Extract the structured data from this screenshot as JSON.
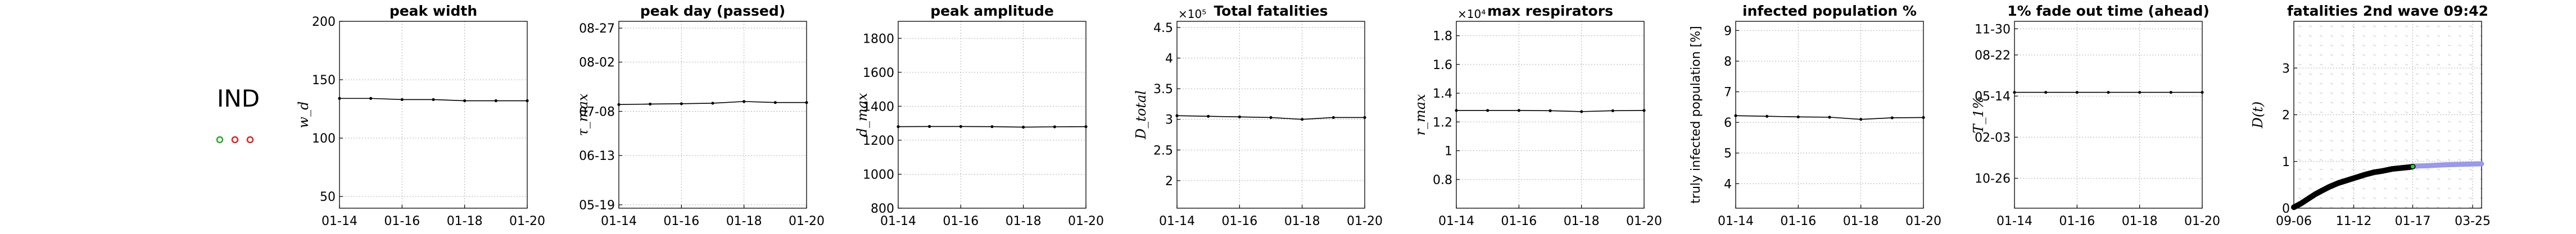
{
  "country": {
    "code": "IND",
    "markers": [
      "#22aa22",
      "#dd2222",
      "#dd2222"
    ]
  },
  "colors": {
    "line": "#000000",
    "grid": "#b0b0b0",
    "wave2": "#9999ee",
    "field": "#c8c8c8"
  },
  "chart_data": [
    {
      "type": "line",
      "title": "peak width",
      "ylabel": "w_d",
      "ylim": [
        40,
        200
      ],
      "yticks": [
        50,
        100,
        150,
        200
      ],
      "ytick_labels": [
        "50",
        "100",
        "150",
        "200"
      ],
      "xticks": [
        "01-14",
        "01-16",
        "01-18",
        "01-20"
      ],
      "x": [
        "01-14",
        "01-15",
        "01-16",
        "01-17",
        "01-18",
        "01-19",
        "01-20"
      ],
      "values": [
        134,
        134,
        133,
        133,
        132,
        132,
        132
      ]
    },
    {
      "type": "line",
      "title": "peak day (passed)",
      "ylabel": "τ_max",
      "ylim": [
        0,
        110
      ],
      "yticks": [
        2,
        31,
        57,
        86,
        106
      ],
      "ytick_labels": [
        "05-19",
        "06-13",
        "07-08",
        "08-02",
        "08-27"
      ],
      "xticks": [
        "01-14",
        "01-16",
        "01-18",
        "01-20"
      ],
      "x": [
        "01-14",
        "01-15",
        "01-16",
        "01-17",
        "01-18",
        "01-19",
        "01-20"
      ],
      "values": [
        61,
        61.3,
        61.5,
        61.8,
        62.8,
        62.2,
        62.2
      ]
    },
    {
      "type": "line",
      "title": "peak amplitude",
      "ylabel": "d_max",
      "ylim": [
        800,
        1900
      ],
      "yticks": [
        800,
        1000,
        1200,
        1400,
        1600,
        1800
      ],
      "ytick_labels": [
        "800",
        "1000",
        "1200",
        "1400",
        "1600",
        "1800"
      ],
      "xticks": [
        "01-14",
        "01-16",
        "01-18",
        "01-20"
      ],
      "x": [
        "01-14",
        "01-15",
        "01-16",
        "01-17",
        "01-18",
        "01-19",
        "01-20"
      ],
      "values": [
        1280,
        1281,
        1281,
        1280,
        1277,
        1279,
        1280
      ]
    },
    {
      "type": "line",
      "title": "Total fatalities",
      "ylabel": "D_total",
      "multiplier": "×10⁵",
      "ylim": [
        1.55,
        4.6
      ],
      "yticks": [
        2.0,
        2.5,
        3.0,
        3.5,
        4.0,
        4.5
      ],
      "ytick_labels": [
        "2",
        "2.5",
        "3",
        "3.5",
        "4",
        "4.5"
      ],
      "xticks": [
        "01-14",
        "01-16",
        "01-18",
        "01-20"
      ],
      "x": [
        "01-14",
        "01-15",
        "01-16",
        "01-17",
        "01-18",
        "01-19",
        "01-20"
      ],
      "values": [
        3.06,
        3.05,
        3.04,
        3.03,
        3.0,
        3.03,
        3.03
      ]
    },
    {
      "type": "line",
      "title": "max respirators",
      "ylabel": "r_max",
      "multiplier": "×10⁴",
      "ylim": [
        0.6,
        1.9
      ],
      "yticks": [
        0.8,
        1.0,
        1.2,
        1.4,
        1.6,
        1.8
      ],
      "ytick_labels": [
        "0.8",
        "1",
        "1.2",
        "1.4",
        "1.6",
        "1.8"
      ],
      "xticks": [
        "01-14",
        "01-16",
        "01-18",
        "01-20"
      ],
      "x": [
        "01-14",
        "01-15",
        "01-16",
        "01-17",
        "01-18",
        "01-19",
        "01-20"
      ],
      "values": [
        1.28,
        1.28,
        1.28,
        1.278,
        1.272,
        1.278,
        1.28
      ]
    },
    {
      "type": "line",
      "title": "infected population %",
      "ylabel": "truly infected population [%]",
      "ylim": [
        3.2,
        9.3
      ],
      "yticks": [
        4,
        5,
        6,
        7,
        8,
        9
      ],
      "ytick_labels": [
        "4",
        "5",
        "6",
        "7",
        "8",
        "9"
      ],
      "xticks": [
        "01-14",
        "01-16",
        "01-18",
        "01-20"
      ],
      "x": [
        "01-14",
        "01-15",
        "01-16",
        "01-17",
        "01-18",
        "01-19",
        "01-20"
      ],
      "values": [
        6.22,
        6.2,
        6.18,
        6.17,
        6.1,
        6.15,
        6.16
      ]
    },
    {
      "type": "line",
      "title": "1% fade out time (ahead)",
      "ylabel": "T_1%",
      "ylim": [
        0,
        100
      ],
      "yticks": [
        16,
        38,
        60,
        82,
        96
      ],
      "ytick_labels": [
        "10-26",
        "02-03",
        "05-14",
        "08-22",
        "11-30"
      ],
      "xticks": [
        "01-14",
        "01-16",
        "01-18",
        "01-20"
      ],
      "x": [
        "01-14",
        "01-15",
        "01-16",
        "01-17",
        "01-18",
        "01-19",
        "01-20"
      ],
      "values": [
        62,
        62,
        62,
        62,
        62,
        62,
        62
      ]
    },
    {
      "type": "line",
      "title": "fatalities 2nd wave 09:42",
      "ylabel": "D(t)",
      "ylim": [
        0,
        4
      ],
      "yticks": [
        0,
        1,
        2,
        3
      ],
      "ytick_labels": [
        "0",
        "1",
        "2",
        "3"
      ],
      "xticks": [
        "09-06",
        "11-12",
        "01-17",
        "03-25"
      ],
      "x": [
        0,
        8,
        16,
        24,
        32,
        40,
        50,
        60,
        70,
        80,
        90,
        100,
        110,
        120,
        130,
        133
      ],
      "values": [
        0.02,
        0.1,
        0.2,
        0.3,
        0.38,
        0.46,
        0.54,
        0.6,
        0.66,
        0.72,
        0.77,
        0.8,
        0.84,
        0.86,
        0.88,
        0.89
      ],
      "wave2_x": [
        133,
        150,
        170,
        190,
        210
      ],
      "wave2_values": [
        0.9,
        0.91,
        0.93,
        0.94,
        0.95
      ],
      "xlim": [
        0,
        210
      ],
      "xtick_positions": [
        0,
        67,
        133,
        200
      ]
    }
  ]
}
